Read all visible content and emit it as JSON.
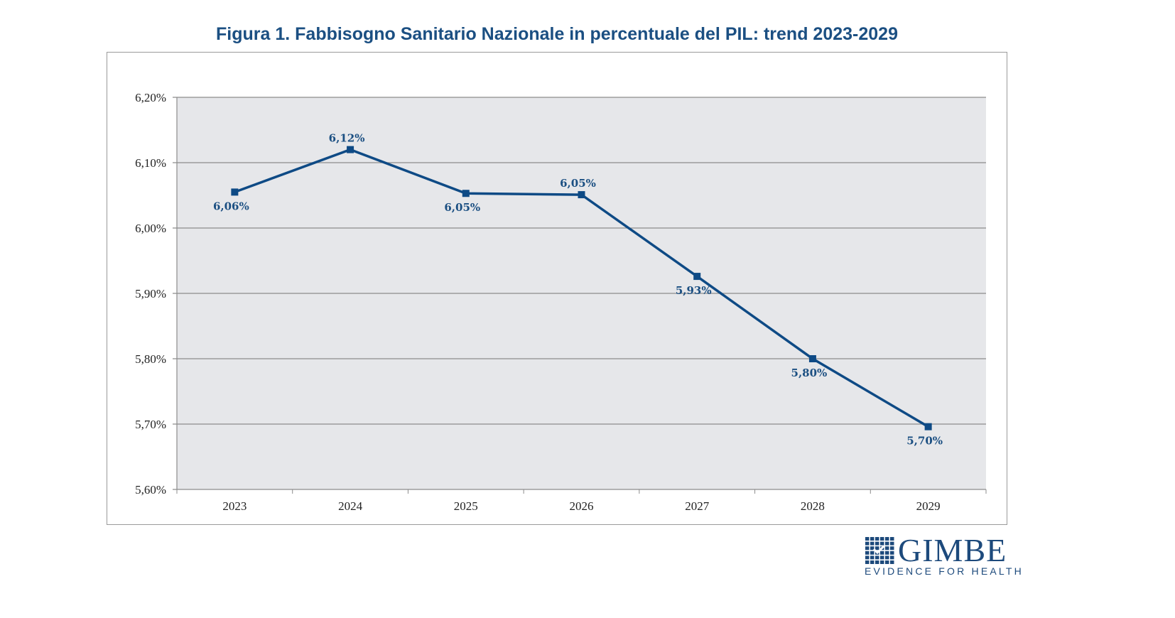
{
  "chart_data": {
    "type": "line",
    "title": "Figura 1. Fabbisogno Sanitario Nazionale in percentuale del PIL: trend 2023-2029",
    "xlabel": "",
    "ylabel": "",
    "categories": [
      "2023",
      "2024",
      "2025",
      "2026",
      "2027",
      "2028",
      "2029"
    ],
    "values": [
      6.055,
      6.12,
      6.053,
      6.051,
      5.926,
      5.8,
      5.696
    ],
    "data_labels": [
      "6,06%",
      "6,12%",
      "6,05%",
      "6,05%",
      "5,93%",
      "5,80%",
      "5,70%"
    ],
    "label_positions": [
      "below",
      "above",
      "below",
      "above",
      "below",
      "below",
      "below"
    ],
    "ylim": [
      5.6,
      6.2
    ],
    "yticks": [
      5.6,
      5.7,
      5.8,
      5.9,
      6.0,
      6.1,
      6.2
    ],
    "ytick_labels": [
      "5,60%",
      "5,70%",
      "5,80%",
      "5,90%",
      "6,00%",
      "6,10%",
      "6,20%"
    ],
    "grid": true,
    "legend": "none",
    "colors": {
      "line": "#0e4a85",
      "plot_background": "#e6e7ea",
      "title": "#1b4f82",
      "grid": "#8c8c8c"
    }
  },
  "logo": {
    "name": "GIMBE",
    "tagline": "EVIDENCE FOR HEALTH"
  }
}
